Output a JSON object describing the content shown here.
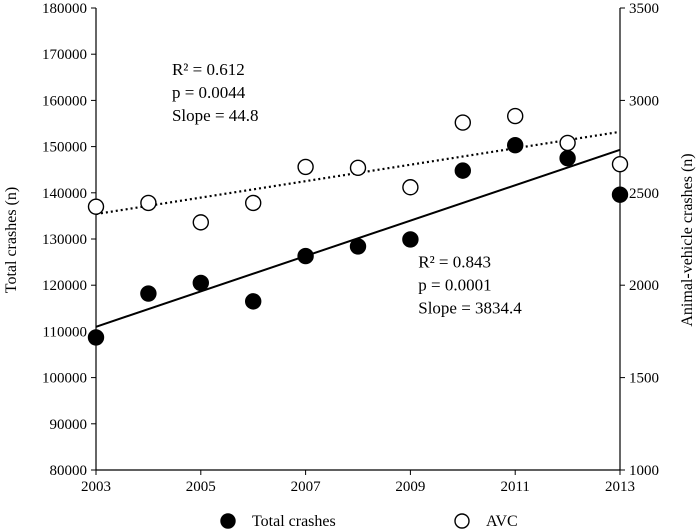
{
  "chart_data": {
    "type": "scatter",
    "x": [
      2003,
      2004,
      2005,
      2006,
      2007,
      2008,
      2009,
      2010,
      2011,
      2012,
      2013
    ],
    "xlim": [
      2003,
      2013
    ],
    "xticks": [
      "2003",
      "2005",
      "2007",
      "2009",
      "2011",
      "2013"
    ],
    "ylabel": "Total crashes (n)",
    "ylim": [
      80000,
      180000
    ],
    "yticks": [
      "80000",
      "90000",
      "100000",
      "110000",
      "120000",
      "130000",
      "140000",
      "150000",
      "160000",
      "170000",
      "180000"
    ],
    "y2label": "Animal-vehicle crashes (n)",
    "y2lim": [
      1000,
      3500
    ],
    "y2ticks": [
      "1000",
      "1500",
      "2000",
      "2500",
      "3000",
      "3500"
    ],
    "grid": false,
    "legend_position": "bottom",
    "series": [
      {
        "name": "Total crashes",
        "axis": "left",
        "marker": "filled-circle",
        "values": [
          108700,
          118200,
          120500,
          116500,
          126300,
          128400,
          129900,
          144800,
          150300,
          147500,
          139600
        ],
        "trendline": {
          "style": "solid",
          "start": 111000,
          "end": 149300
        }
      },
      {
        "name": "AVC",
        "axis": "right",
        "marker": "open-circle",
        "values": [
          2425,
          2445,
          2340,
          2445,
          2640,
          2635,
          2530,
          2880,
          2915,
          2770,
          2655
        ],
        "trendline": {
          "style": "dotted",
          "start": 2385,
          "end": 2830
        }
      }
    ],
    "annotations": [
      {
        "lines": [
          "R² = 0.612",
          "p = 0.0044",
          "Slope = 44.8"
        ],
        "anchor_year": 2004.45,
        "anchor_value": 165500
      },
      {
        "lines": [
          "R² = 0.843",
          "p = 0.0001",
          "Slope = 3834.4"
        ],
        "anchor_year": 2009.15,
        "anchor_value": 123800
      }
    ]
  }
}
